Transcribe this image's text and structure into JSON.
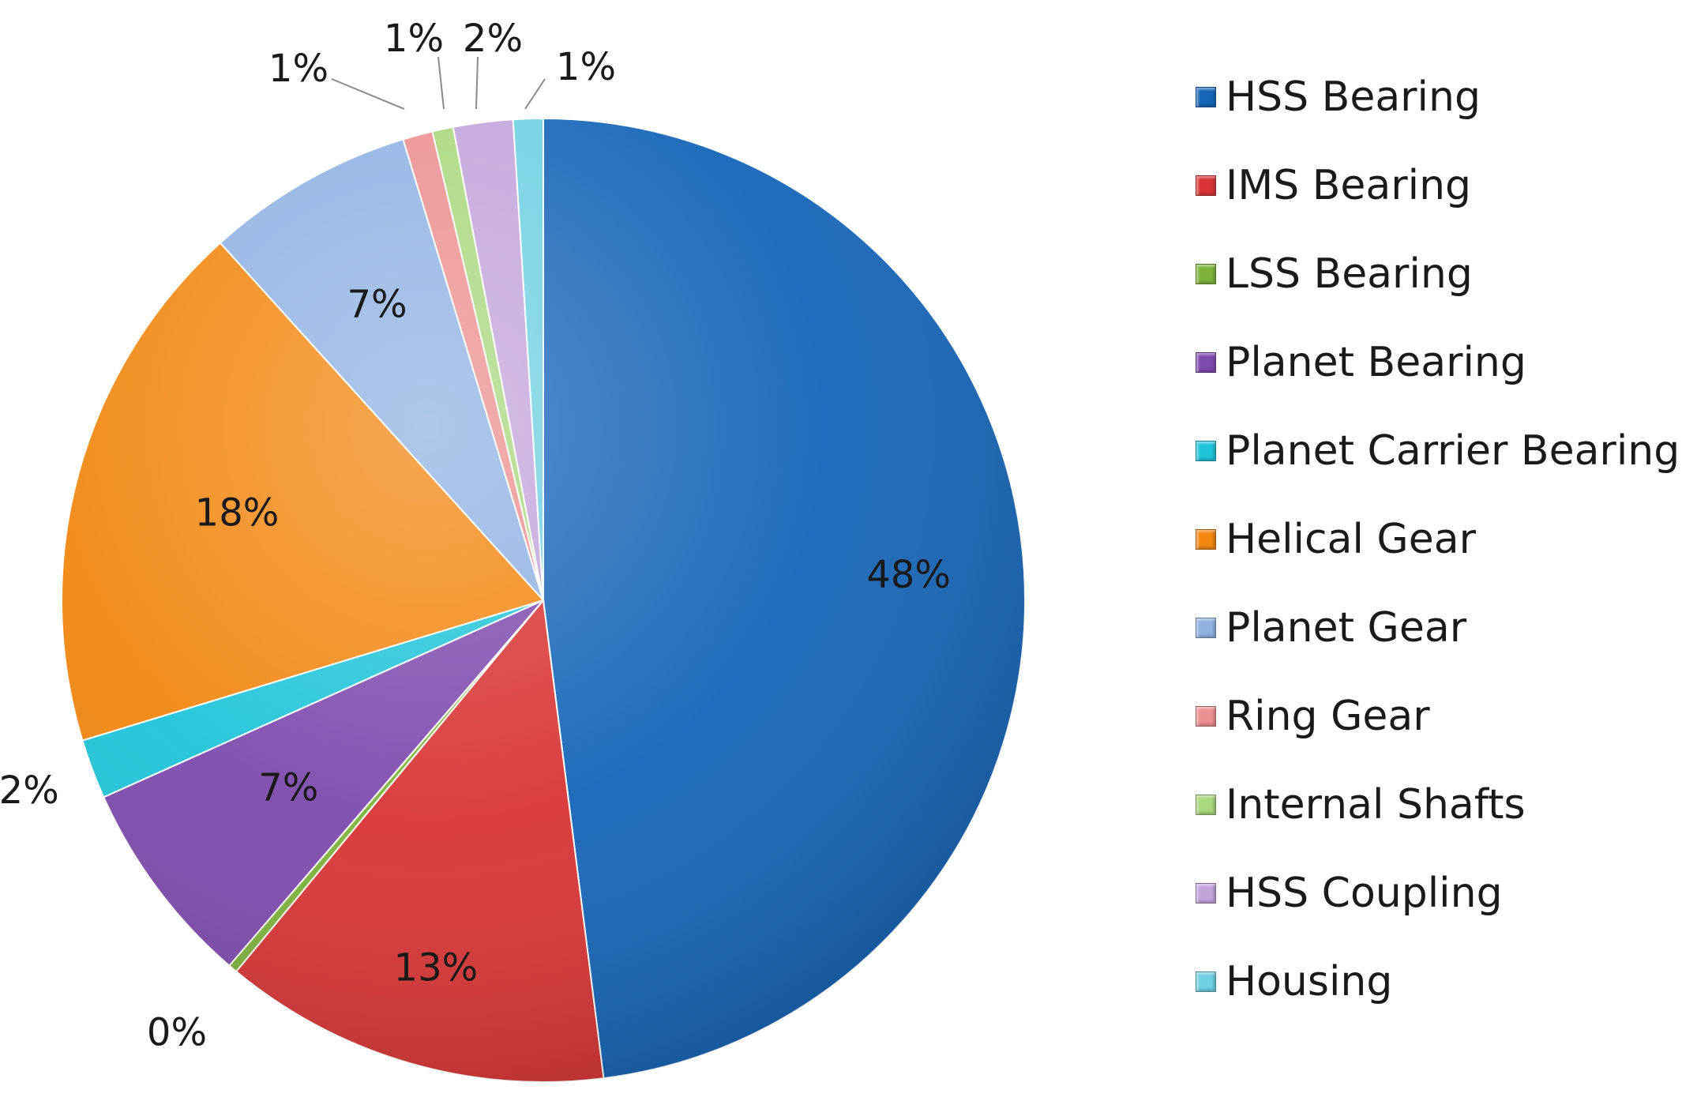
{
  "chart_data": {
    "type": "pie",
    "title": "",
    "legend_position": "right",
    "slices": [
      {
        "label": "HSS Bearing",
        "value": 48,
        "display": "48%",
        "color": "#1565B8"
      },
      {
        "label": "IMS Bearing",
        "value": 13,
        "display": "13%",
        "color": "#D93434"
      },
      {
        "label": "LSS Bearing",
        "value": 0.3,
        "display": "0%",
        "color": "#7DB33A"
      },
      {
        "label": "Planet Bearing",
        "value": 7,
        "display": "7%",
        "color": "#7E4AAE"
      },
      {
        "label": "Planet Carrier Bearing",
        "value": 2,
        "display": "2%",
        "color": "#1FC4D9"
      },
      {
        "label": "Helical Gear",
        "value": 18,
        "display": "18%",
        "color": "#F2860F"
      },
      {
        "label": "Planet Gear",
        "value": 7,
        "display": "7%",
        "color": "#8FB2E3"
      },
      {
        "label": "Ring Gear",
        "value": 1,
        "display": "1%",
        "color": "#EC8F8F"
      },
      {
        "label": "Internal Shafts",
        "value": 0.7,
        "display": "1%",
        "color": "#A9D87E"
      },
      {
        "label": "HSS Coupling",
        "value": 2,
        "display": "2%",
        "color": "#C2A4DB"
      },
      {
        "label": "Housing",
        "value": 1,
        "display": "1%",
        "color": "#6FD0E3"
      }
    ]
  },
  "legend": {
    "items": [
      {
        "label": "HSS Bearing",
        "color": "#1565B8"
      },
      {
        "label": "IMS Bearing",
        "color": "#D93434"
      },
      {
        "label": "LSS Bearing",
        "color": "#7DB33A"
      },
      {
        "label": "Planet Bearing",
        "color": "#7E4AAE"
      },
      {
        "label": "Planet Carrier Bearing",
        "color": "#1FC4D9"
      },
      {
        "label": "Helical Gear",
        "color": "#F2860F"
      },
      {
        "label": "Planet Gear",
        "color": "#8FB2E3"
      },
      {
        "label": "Ring Gear",
        "color": "#EC8F8F"
      },
      {
        "label": "Internal Shafts",
        "color": "#A9D87E"
      },
      {
        "label": "HSS Coupling",
        "color": "#C2A4DB"
      },
      {
        "label": "Housing",
        "color": "#6FD0E3"
      }
    ]
  }
}
